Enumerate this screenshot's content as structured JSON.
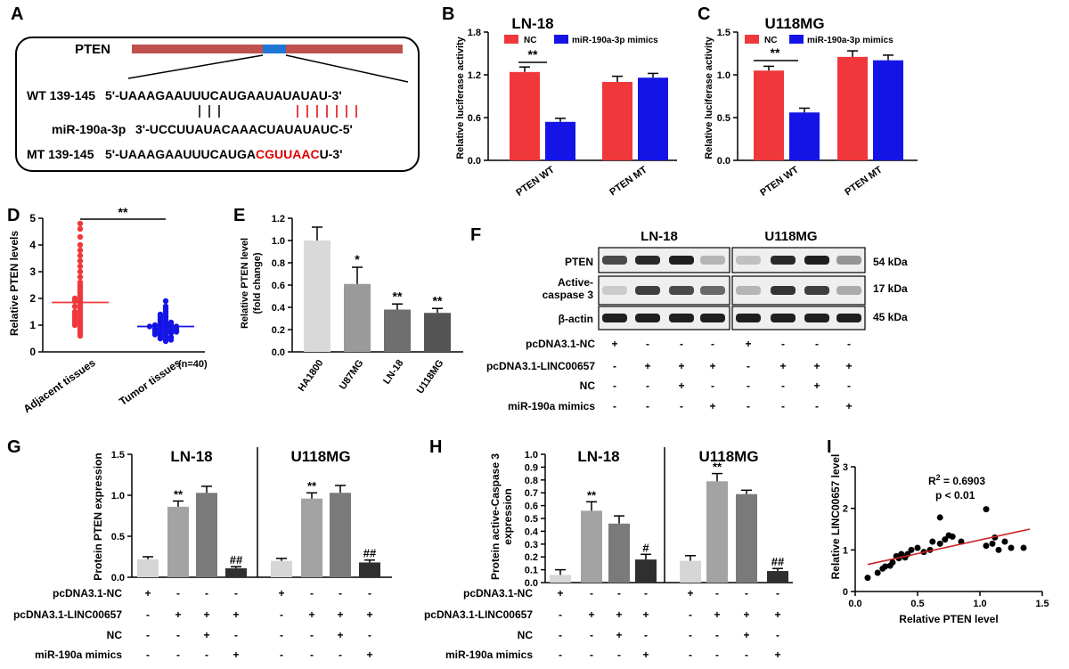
{
  "panel_labels": {
    "A": "A",
    "B": "B",
    "C": "C",
    "D": "D",
    "E": "E",
    "F": "F",
    "G": "G",
    "H": "H",
    "I": "I"
  },
  "colors": {
    "nc_red": "#f0383c",
    "mimic_blue": "#1414e6",
    "gene_bar": "#c0504d",
    "site_blue": "#1f77d4",
    "mutation_red": "#e00000",
    "dark_gray": "#333333",
    "mid_gray": "#777777",
    "light_gray": "#cfcfcf",
    "fit_line": "#cc2222"
  },
  "panel_a": {
    "gene": "PTEN",
    "wt_label": "WT 139-145",
    "wt_seq": "5'-UAAAGAAUUUCAUGAAUAUAUAU-3'",
    "mir_label": "miR-190a-3p",
    "mir_seq": "3'-UCCUUAUACAAACUAUAUAUC-5'",
    "mt_label": "MT 139-145",
    "mt_seq_prefix": "5'-UAAAGAAUUUCAUGA",
    "mt_seq_mut": "CGUUAAC",
    "mt_seq_suffix": "U-3'"
  },
  "chart_data": [
    {
      "panel": "B",
      "type": "bar",
      "title": "LN-18",
      "ylabel": "Relative luciferase activity",
      "categories": [
        "PTEN WT",
        "PTEN MT"
      ],
      "series": [
        {
          "name": "NC",
          "values": [
            1.24,
            1.1
          ],
          "err": [
            0.07,
            0.08
          ]
        },
        {
          "name": "miR-190a-3p mimics",
          "values": [
            0.54,
            1.16
          ],
          "err": [
            0.05,
            0.06
          ]
        }
      ],
      "ylim": [
        0,
        1.8
      ],
      "yticks": [
        "0.0",
        "0.6",
        "1.2",
        "1.8"
      ],
      "annotations": [
        "**"
      ]
    },
    {
      "panel": "C",
      "type": "bar",
      "title": "U118MG",
      "ylabel": "Relative luciferase activity",
      "categories": [
        "PTEN WT",
        "PTEN MT"
      ],
      "series": [
        {
          "name": "NC",
          "values": [
            1.05,
            1.21
          ],
          "err": [
            0.05,
            0.07
          ]
        },
        {
          "name": "miR-190a-3p mimics",
          "values": [
            0.56,
            1.17
          ],
          "err": [
            0.05,
            0.06
          ]
        }
      ],
      "ylim": [
        0,
        1.5
      ],
      "yticks": [
        "0.0",
        "0.5",
        "1.0",
        "1.5"
      ],
      "annotations": [
        "**"
      ]
    },
    {
      "panel": "D",
      "type": "scatter",
      "ylabel": "Relative PTEN levels",
      "categories": [
        "Adjacent tissues",
        "Tumor tissues"
      ],
      "note": "(n=40)",
      "ylim": [
        0,
        5
      ],
      "yticks": [
        "0",
        "1",
        "2",
        "3",
        "4",
        "5"
      ],
      "means": [
        1.85,
        0.95
      ],
      "adjacent": [
        4.8,
        4.6,
        4.3,
        4.0,
        3.8,
        3.6,
        3.4,
        3.2,
        3.0,
        2.8,
        2.6,
        2.5,
        2.4,
        2.3,
        2.2,
        2.1,
        2.0,
        2.0,
        1.9,
        1.9,
        1.8,
        1.7,
        1.7,
        1.6,
        1.5,
        1.5,
        1.4,
        1.4,
        1.3,
        1.3,
        1.2,
        1.2,
        1.1,
        1.1,
        1.0,
        1.0,
        0.9,
        0.8,
        0.7,
        0.6
      ],
      "tumor": [
        1.9,
        1.7,
        1.6,
        1.5,
        1.4,
        1.4,
        1.3,
        1.3,
        1.2,
        1.2,
        1.1,
        1.1,
        1.1,
        1.0,
        1.0,
        1.0,
        1.0,
        0.95,
        0.95,
        0.9,
        0.9,
        0.9,
        0.85,
        0.85,
        0.8,
        0.8,
        0.8,
        0.75,
        0.75,
        0.7,
        0.7,
        0.7,
        0.65,
        0.6,
        0.6,
        0.55,
        0.5,
        0.5,
        0.45,
        0.4
      ],
      "annotations": [
        "**"
      ]
    },
    {
      "panel": "E",
      "type": "bar",
      "ylabel": "Relative PTEN level (fold change)",
      "categories": [
        "HA1800",
        "U87MG",
        "LN-18",
        "U118MG"
      ],
      "values": [
        1.0,
        0.61,
        0.38,
        0.35
      ],
      "err": [
        0.12,
        0.15,
        0.05,
        0.04
      ],
      "sig": [
        "",
        "*",
        "**",
        "**"
      ],
      "ylim": [
        0,
        1.2
      ],
      "yticks": [
        "0.0",
        "0.2",
        "0.4",
        "0.6",
        "0.8",
        "1.0",
        "1.2"
      ]
    },
    {
      "panel": "G",
      "type": "bar",
      "ylabel": "Protein PTEN expression",
      "groups": [
        "LN-18",
        "U118MG"
      ],
      "values": [
        [
          0.22,
          0.86,
          1.03,
          0.11
        ],
        [
          0.2,
          0.96,
          1.03,
          0.18
        ]
      ],
      "err": [
        [
          0.03,
          0.07,
          0.08,
          0.02
        ],
        [
          0.03,
          0.07,
          0.09,
          0.03
        ]
      ],
      "sig": [
        [
          "",
          "**",
          "",
          "##"
        ],
        [
          "",
          "**",
          "",
          "##"
        ]
      ],
      "ylim": [
        0,
        1.5
      ],
      "yticks": [
        "0.0",
        "0.5",
        "1.0",
        "1.5"
      ]
    },
    {
      "panel": "H",
      "type": "bar",
      "ylabel": "Protein active-Caspase 3 expression",
      "groups": [
        "LN-18",
        "U118MG"
      ],
      "values": [
        [
          0.06,
          0.56,
          0.46,
          0.18
        ],
        [
          0.17,
          0.79,
          0.69,
          0.09
        ]
      ],
      "err": [
        [
          0.04,
          0.07,
          0.06,
          0.04
        ],
        [
          0.04,
          0.06,
          0.03,
          0.02
        ]
      ],
      "sig": [
        [
          "",
          "**",
          "",
          "#"
        ],
        [
          "",
          "**",
          "",
          "##"
        ]
      ],
      "ylim": [
        0,
        1.0
      ],
      "yticks": [
        "0.0",
        "0.1",
        "0.2",
        "0.3",
        "0.4",
        "0.5",
        "0.6",
        "0.7",
        "0.8",
        "0.9",
        "1.0"
      ]
    },
    {
      "panel": "I",
      "type": "scatter",
      "xlabel": "Relative PTEN level",
      "ylabel": "Relative LINC00657 level",
      "xlim": [
        0,
        1.5
      ],
      "ylim": [
        0,
        3
      ],
      "xticks": [
        "0.0",
        "0.5",
        "1.0",
        "1.5"
      ],
      "yticks": [
        "0",
        "1",
        "2",
        "3"
      ],
      "r2_label": "R",
      "r2_sup": "2",
      "r2_value": " = 0.6903",
      "p_label": "p < 0.01",
      "points": [
        [
          0.1,
          0.33
        ],
        [
          0.18,
          0.45
        ],
        [
          0.22,
          0.55
        ],
        [
          0.24,
          0.6
        ],
        [
          0.28,
          0.62
        ],
        [
          0.3,
          0.7
        ],
        [
          0.33,
          0.85
        ],
        [
          0.35,
          0.8
        ],
        [
          0.37,
          0.9
        ],
        [
          0.4,
          0.82
        ],
        [
          0.45,
          1.0
        ],
        [
          0.5,
          1.05
        ],
        [
          0.55,
          0.95
        ],
        [
          0.6,
          1.0
        ],
        [
          0.62,
          1.2
        ],
        [
          0.68,
          1.15
        ],
        [
          0.72,
          1.25
        ],
        [
          0.75,
          1.35
        ],
        [
          0.78,
          1.32
        ],
        [
          0.85,
          1.2
        ],
        [
          0.68,
          1.78
        ],
        [
          1.05,
          1.98
        ],
        [
          1.05,
          1.1
        ],
        [
          1.1,
          1.15
        ],
        [
          1.12,
          1.3
        ],
        [
          1.15,
          1.0
        ],
        [
          1.2,
          1.2
        ],
        [
          1.25,
          1.05
        ],
        [
          1.35,
          1.05
        ],
        [
          0.42,
          0.9
        ]
      ],
      "fit": [
        [
          0.1,
          0.65
        ],
        [
          1.4,
          1.5
        ]
      ]
    }
  ],
  "legend": {
    "nc": "NC",
    "mimics": "miR-190a-3p mimics"
  },
  "western": {
    "groups": [
      "LN-18",
      "U118MG"
    ],
    "rows": [
      "PTEN",
      "Active-",
      "caspase 3",
      "β-actin"
    ],
    "kda": [
      "54 kDa",
      "17 kDa",
      "45 kDa"
    ],
    "band_intensity": {
      "pten": [
        0.75,
        0.9,
        0.95,
        0.25,
        0.2,
        0.9,
        0.95,
        0.4
      ],
      "caspase": [
        0.15,
        0.8,
        0.75,
        0.6,
        0.25,
        0.85,
        0.8,
        0.3
      ],
      "actin": [
        0.95,
        0.95,
        0.95,
        0.95,
        0.95,
        0.95,
        0.95,
        0.95
      ]
    }
  },
  "treatments": {
    "labels": [
      "pcDNA3.1-NC",
      "pcDNA3.1-LINC00657",
      "NC",
      "miR-190a mimics"
    ],
    "matrix": [
      [
        "+",
        "-",
        "-",
        "-"
      ],
      [
        "-",
        "+",
        "+",
        "+"
      ],
      [
        "-",
        "-",
        "+",
        "-"
      ],
      [
        "-",
        "-",
        "-",
        "+"
      ]
    ]
  }
}
